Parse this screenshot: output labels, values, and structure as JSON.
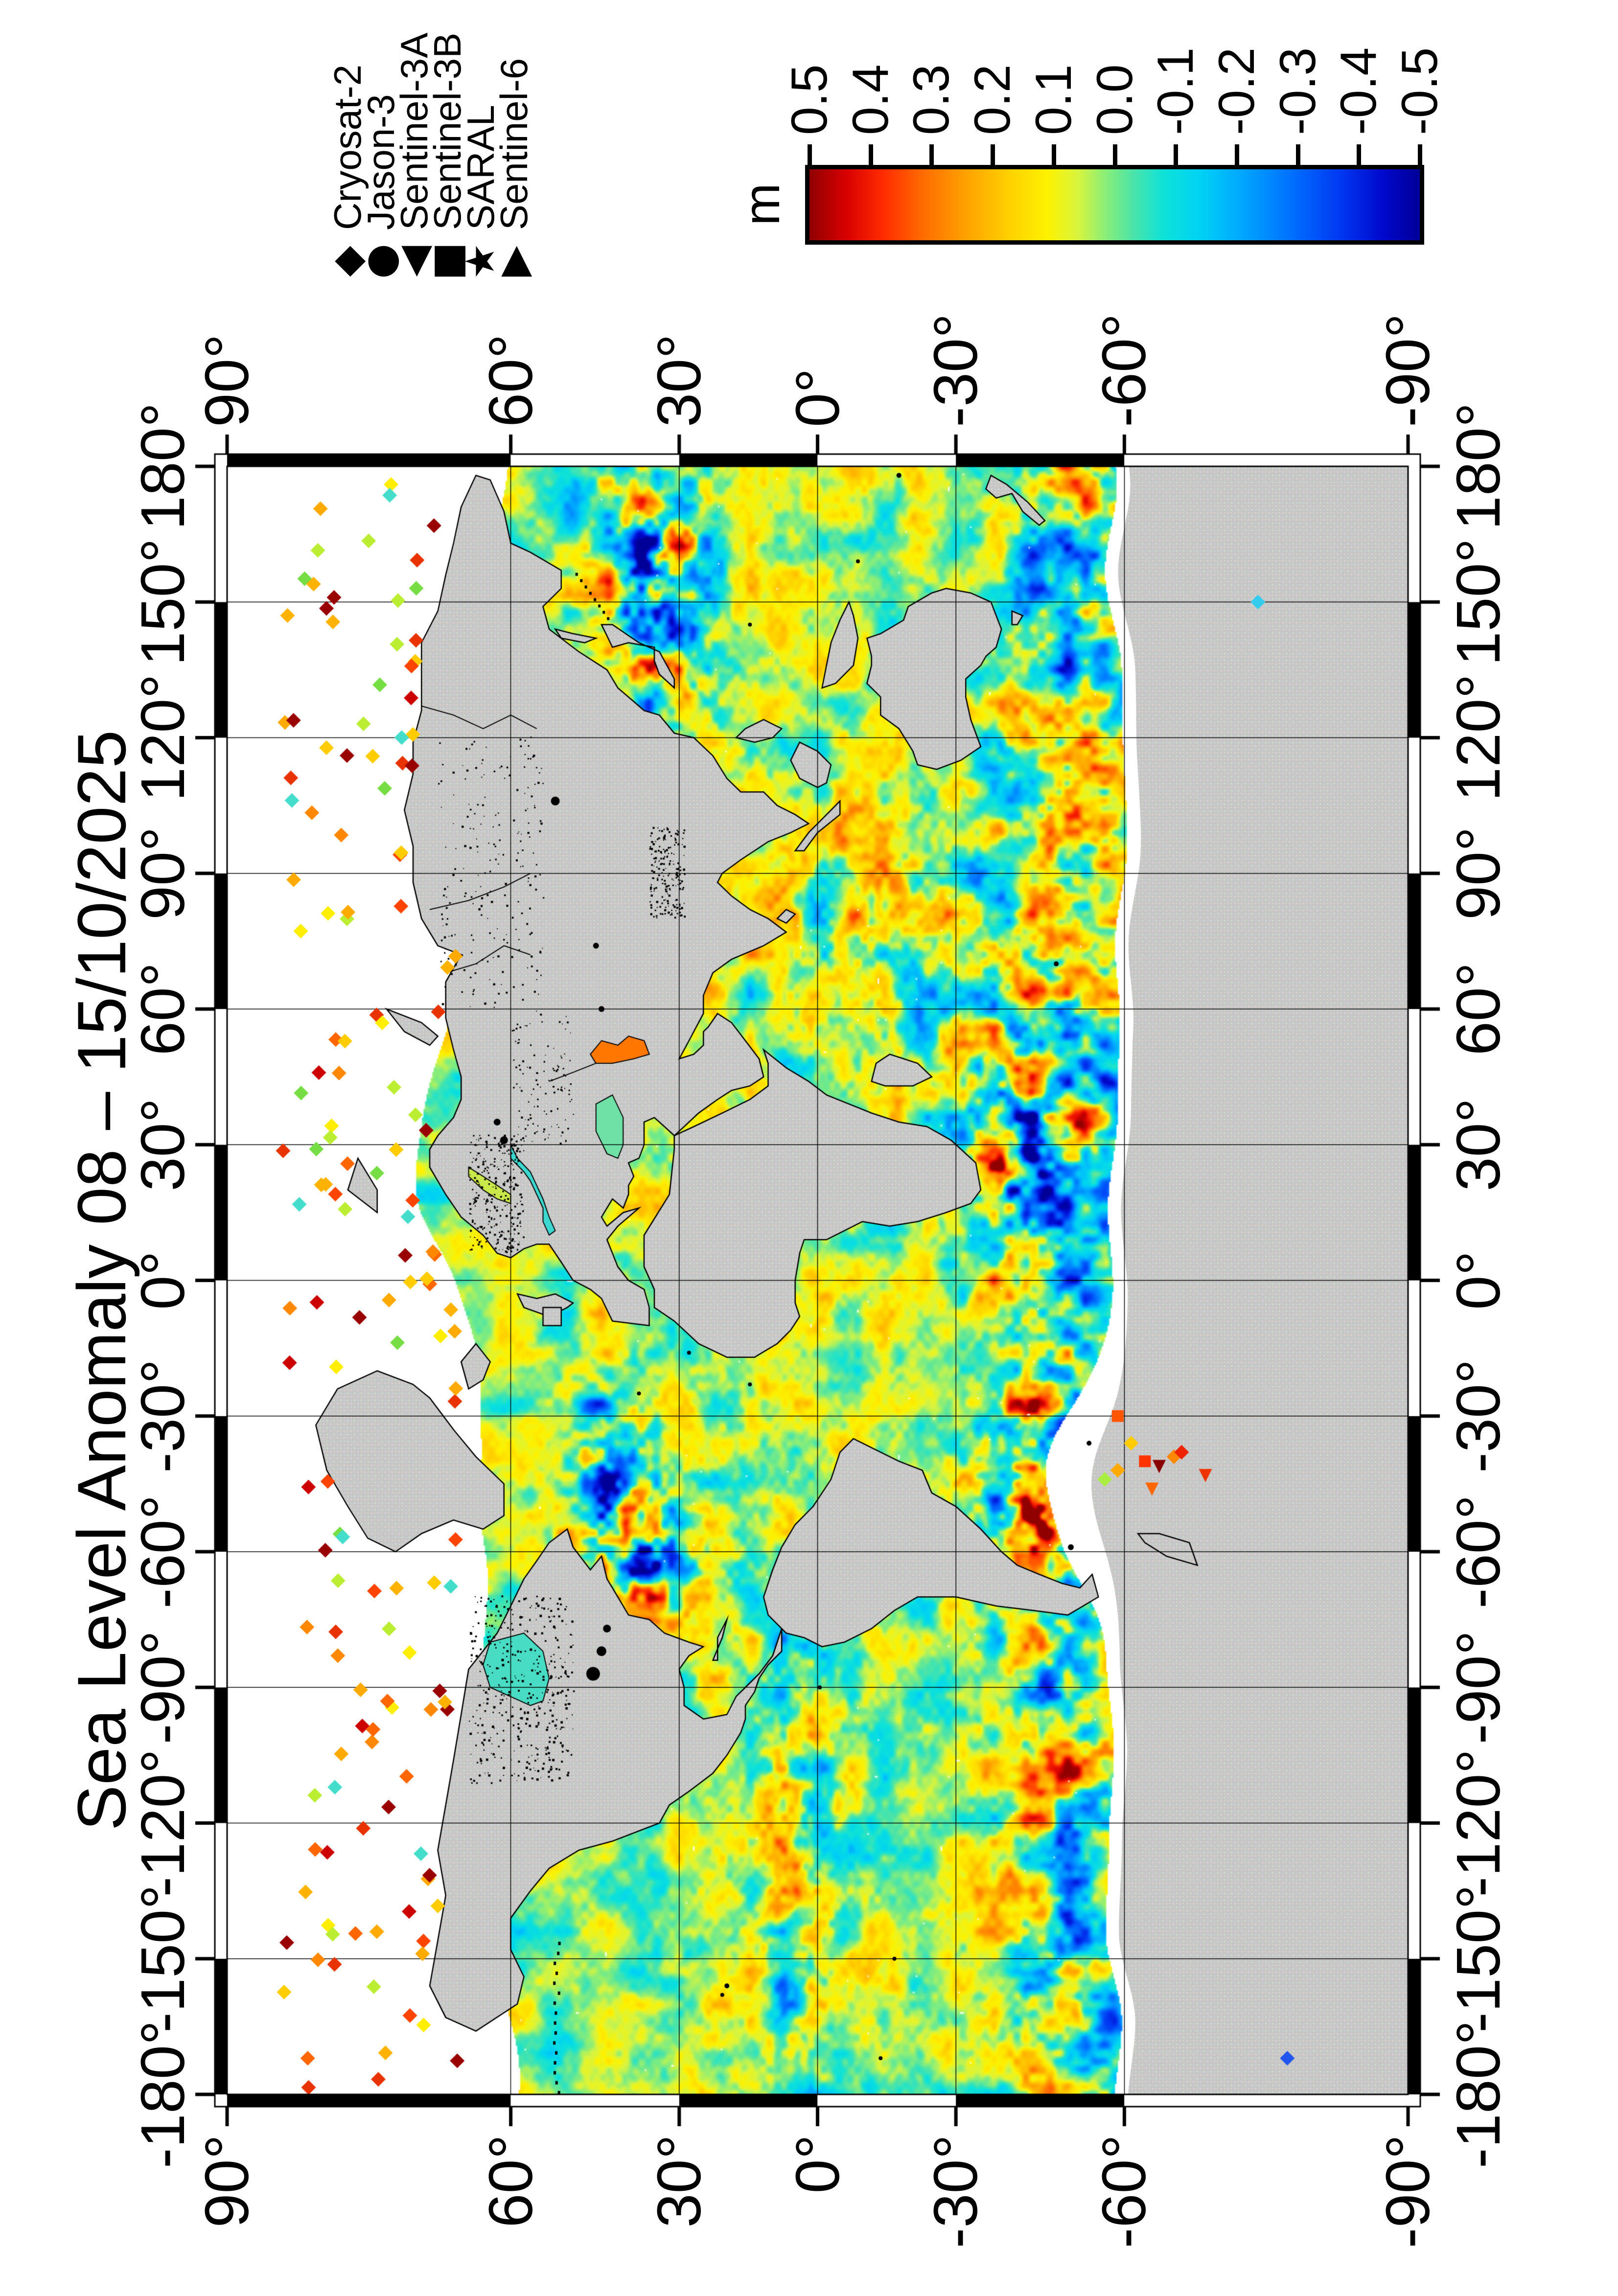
{
  "title": "Sea Level Anomaly 08 – 15/10/2025",
  "legend": {
    "entries": [
      {
        "symbol": "diamond-icon",
        "glyph": "◆",
        "label": "Cryosat-2"
      },
      {
        "symbol": "circle-icon",
        "glyph": "●",
        "label": "Jason-3"
      },
      {
        "symbol": "triangle-left-icon",
        "glyph": "◀",
        "label": "Sentinel-3A"
      },
      {
        "symbol": "square-icon",
        "glyph": "■",
        "label": "Sentinel-3B"
      },
      {
        "symbol": "star-icon",
        "glyph": "★",
        "label": "SARAL"
      },
      {
        "symbol": "triangle-right-icon",
        "glyph": "▶",
        "label": "Sentinel-6"
      }
    ]
  },
  "colorbar": {
    "unit": "m",
    "max": 0.5,
    "min": -0.5,
    "tick_labels": [
      "0.5",
      "0.4",
      "0.3",
      "0.2",
      "0.1",
      "0.0",
      "-0.1",
      "-0.2",
      "-0.3",
      "-0.4",
      "-0.5"
    ],
    "palette": [
      {
        "v": 0.5,
        "c": "#910000"
      },
      {
        "v": 0.44,
        "c": "#d80000"
      },
      {
        "v": 0.38,
        "c": "#ff2a00"
      },
      {
        "v": 0.31,
        "c": "#ff6f00"
      },
      {
        "v": 0.24,
        "c": "#ffa400"
      },
      {
        "v": 0.17,
        "c": "#ffd200"
      },
      {
        "v": 0.11,
        "c": "#fdf200"
      },
      {
        "v": 0.06,
        "c": "#d8f43e"
      },
      {
        "v": 0.015,
        "c": "#8aee78"
      },
      {
        "v": -0.03,
        "c": "#4ce4a8"
      },
      {
        "v": -0.08,
        "c": "#0ee2d8"
      },
      {
        "v": -0.14,
        "c": "#00d2f4"
      },
      {
        "v": -0.21,
        "c": "#00a6ff"
      },
      {
        "v": -0.29,
        "c": "#0070ff"
      },
      {
        "v": -0.37,
        "c": "#0038f2"
      },
      {
        "v": -0.44,
        "c": "#0008cc"
      },
      {
        "v": -0.5,
        "c": "#000098"
      }
    ]
  },
  "axes": {
    "lon_tick_values": [
      -180,
      -150,
      -120,
      -90,
      -60,
      -30,
      0,
      30,
      60,
      90,
      120,
      150,
      180
    ],
    "lon_tick_labels": [
      "-180°",
      "-150°",
      "-120°",
      "-90°",
      "-60°",
      "-30°",
      "0°",
      "30°",
      "60°",
      "90°",
      "120°",
      "150°",
      "180°"
    ],
    "lat_tick_values": [
      90,
      60,
      30,
      0,
      -30,
      -60,
      -90
    ],
    "lat_tick_labels": [
      "90°",
      "60°",
      "30°",
      "0°",
      "-30°",
      "-60°",
      "-90°"
    ]
  },
  "map": {
    "projection": "Miller cylindrical",
    "graticule_deg": 30,
    "land_color": "#c6c6c6",
    "coast_color": "#000000",
    "no_data_color": "#ffffff",
    "grid_color": "#000000"
  },
  "chart_data": {
    "type": "heatmap",
    "title": "Sea Level Anomaly 08 – 15/10/2025",
    "variable": "sea level anomaly",
    "unit": "m",
    "scale_min": -0.5,
    "scale_max": 0.5,
    "scale_tick_step": 0.1,
    "lon_range": [
      -180,
      180
    ],
    "lat_range": [
      -90,
      90
    ],
    "graticule_deg": 30,
    "projection": "miller",
    "legend_position": "top-right",
    "colorbar_position": "right",
    "satellites": [
      "Cryosat-2",
      "Jason-3",
      "Sentinel-3A",
      "Sentinel-3B",
      "SARAL",
      "Sentinel-6"
    ]
  }
}
